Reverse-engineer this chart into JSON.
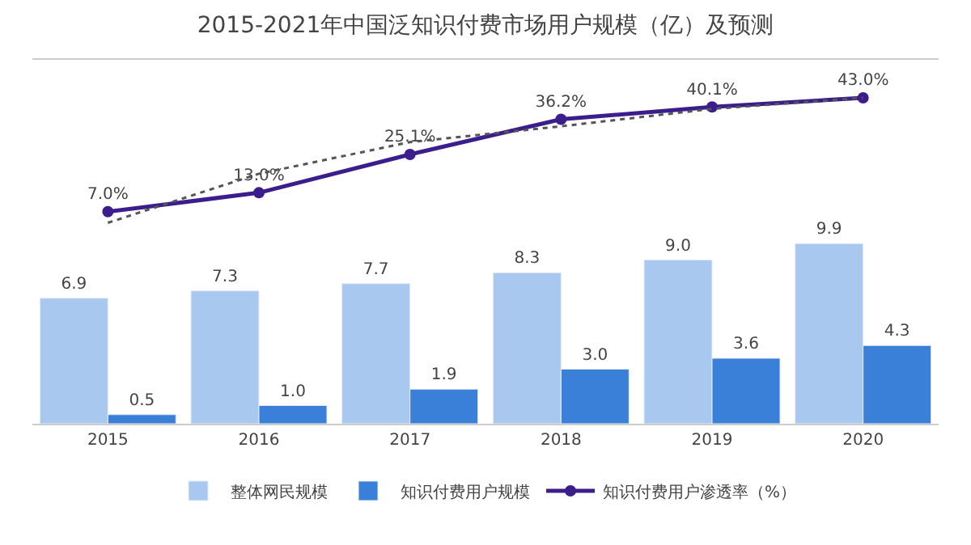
{
  "chart_data": {
    "type": "bar",
    "title": "2015-2021年中国泛知识付费市场用户规模（亿）及预测",
    "categories": [
      "2015",
      "2016",
      "2017",
      "2018",
      "2019",
      "2020"
    ],
    "series": [
      {
        "name": "整体网民规模",
        "color": "#a9c8f0",
        "value_labels": [
          "6.9",
          "7.3",
          "7.7",
          "8.3",
          "9.0",
          "9.9"
        ],
        "values": [
          6.9,
          7.3,
          7.7,
          8.3,
          9.0,
          9.9
        ]
      },
      {
        "name": "知识付费用户规模",
        "color": "#3a7fd8",
        "value_labels": [
          "0.5",
          "1.0",
          "1.9",
          "3.0",
          "3.6",
          "4.3"
        ],
        "values": [
          0.5,
          1.0,
          1.9,
          3.0,
          3.6,
          4.3
        ]
      },
      {
        "name": "知识付费用户渗透率（%）",
        "type": "line",
        "axis": "y2",
        "color": "#3b1e8c",
        "marker": "circle",
        "line_style": "solid",
        "value_labels": [
          "7.0%",
          "13.0%",
          "25.1%",
          "36.2%",
          "40.1%",
          "43.0%"
        ],
        "values": [
          7.0,
          13.0,
          25.1,
          36.2,
          40.1,
          43.0
        ]
      },
      {
        "type": "line",
        "axis": "y2",
        "color": "#555555",
        "marker": "none",
        "line_style": "dotted",
        "values": [
          3.5,
          19,
          29,
          34,
          39.5,
          43
        ]
      }
    ],
    "ylim": [
      0,
      20
    ],
    "y2lim": [
      -60,
      55
    ],
    "legend": "bottom"
  }
}
